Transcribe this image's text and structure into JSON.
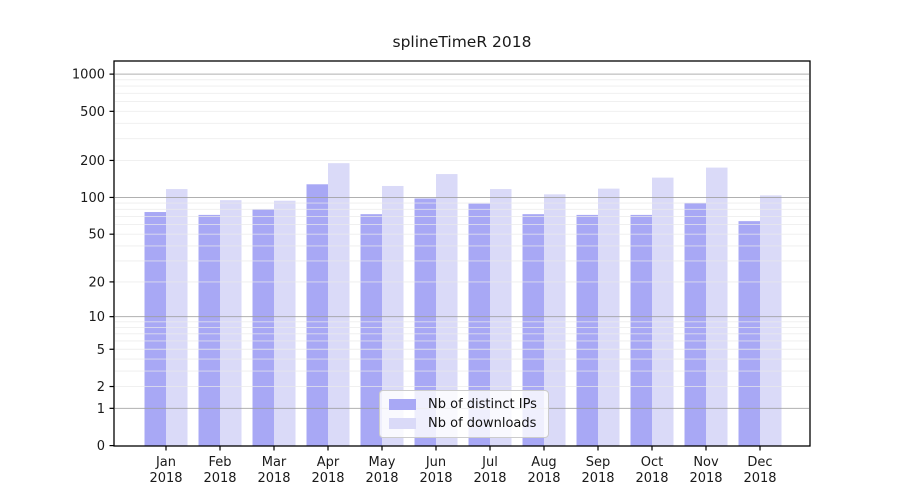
{
  "title": "splineTimeR 2018",
  "chart_data": {
    "type": "bar",
    "title": "splineTimeR 2018",
    "yscale": "log1p",
    "grid": true,
    "legend_position": "bottom-center",
    "yticks": [
      0,
      1,
      2,
      5,
      10,
      20,
      50,
      100,
      200,
      500,
      1000
    ],
    "ylim": [
      0,
      1400
    ],
    "months": [
      "Jan",
      "Feb",
      "Mar",
      "Apr",
      "May",
      "Jun",
      "Jul",
      "Aug",
      "Sep",
      "Oct",
      "Nov",
      "Dec"
    ],
    "year": "2018",
    "categories": [
      "Jan 2018",
      "Feb 2018",
      "Mar 2018",
      "Apr 2018",
      "May 2018",
      "Jun 2018",
      "Jul 2018",
      "Aug 2018",
      "Sep 2018",
      "Oct 2018",
      "Nov 2018",
      "Dec 2018"
    ],
    "series": [
      {
        "name": "Nb of distinct IPs",
        "color": "#a8a8f5",
        "values": [
          76,
          72,
          80,
          128,
          73,
          98,
          89,
          73,
          72,
          72,
          90,
          64
        ]
      },
      {
        "name": "Nb of downloads",
        "color": "#dadaf8",
        "values": [
          117,
          95,
          94,
          190,
          124,
          155,
          117,
          106,
          118,
          145,
          175,
          104
        ]
      }
    ],
    "colors": {
      "major_grid": "#9c9c9c",
      "minor_grid": "#eaeaea",
      "axis": "#000000",
      "text": "#1a1a1a"
    }
  }
}
